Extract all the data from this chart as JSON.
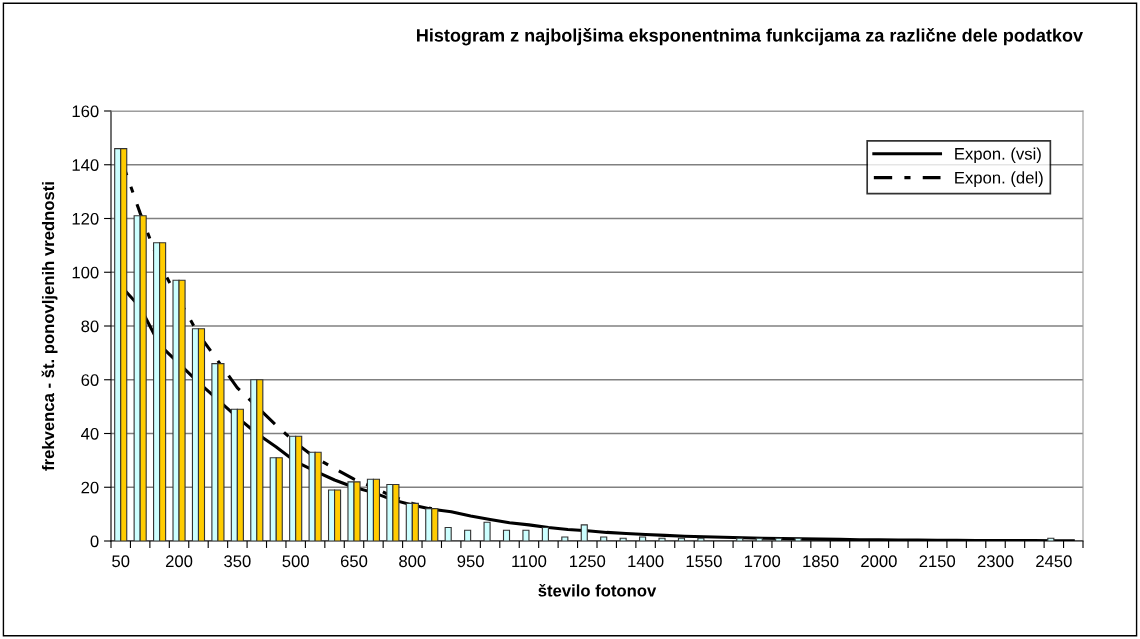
{
  "chart_data": {
    "type": "bar",
    "title": "Histogram z najboljšima eksponentnima funkcijama za različne dele podatkov",
    "xlabel": "število fotonov",
    "ylabel": "frekvenca - št. ponovljenih vrednosti",
    "categories": [
      "50",
      null,
      null,
      "200",
      null,
      null,
      "350",
      null,
      null,
      "500",
      null,
      null,
      "650",
      null,
      null,
      "800",
      null,
      null,
      "950",
      null,
      null,
      "1100",
      null,
      null,
      "1250",
      null,
      null,
      "1400",
      null,
      null,
      "1550",
      null,
      null,
      "1700",
      null,
      null,
      "1850",
      null,
      null,
      "2000",
      null,
      null,
      "2150",
      null,
      null,
      "2300",
      null,
      null,
      "2450",
      null
    ],
    "series": [
      {
        "color": "#ccffff",
        "values": [
          146,
          121,
          111,
          97,
          79,
          66,
          49,
          60,
          31,
          39,
          33,
          19,
          22,
          23,
          21,
          14,
          12,
          5,
          4,
          7,
          4,
          4,
          5,
          1.5,
          6,
          1.5,
          1,
          1.5,
          1,
          1,
          1,
          0,
          1,
          1,
          1,
          1,
          0,
          0,
          0,
          0,
          0,
          0,
          0,
          0,
          0,
          0,
          0,
          0,
          1,
          0
        ]
      },
      {
        "color": "#ffcc00",
        "values": [
          146,
          121,
          111,
          97,
          79,
          66,
          49,
          60,
          31,
          39,
          33,
          19,
          22,
          23,
          21,
          14,
          12,
          null,
          null,
          null,
          null,
          null,
          null,
          null,
          null,
          null,
          null,
          null,
          null,
          null,
          null,
          null,
          null,
          null,
          null,
          null,
          null,
          null,
          null,
          null,
          null,
          null,
          null,
          null,
          null,
          null,
          null,
          null,
          null,
          null
        ]
      },
      {
        "type": "line",
        "name": "Expon. (vsi)",
        "color": "#000000",
        "line_style": "solid",
        "values": [
          95,
          87,
          73,
          66,
          59,
          52.5,
          46,
          40,
          35,
          29.5,
          26,
          22.7,
          20,
          18,
          15.3,
          13.4,
          11.8,
          10.9,
          9.3,
          8,
          6.8,
          6,
          5,
          4.3,
          3.8,
          3.2,
          2.8,
          2.4,
          2.1,
          1.8,
          1.6,
          1.4,
          1.2,
          1.0,
          0.9,
          0.8,
          0.7,
          0.6,
          0.5,
          0.5,
          0.4,
          0.4,
          0.3,
          0.3,
          0.2,
          0.2,
          0.2,
          0.2,
          0.1,
          0.1
        ]
      },
      {
        "type": "line",
        "name": "Expon. (del)",
        "color": "#000000",
        "line_style": "dashed",
        "values": [
          142.5,
          122,
          103,
          89.7,
          77,
          67,
          57,
          50,
          43,
          36.5,
          31,
          27,
          23,
          20,
          16.5,
          14,
          12,
          null,
          null,
          null,
          null,
          null,
          null,
          null,
          null,
          null,
          null,
          null,
          null,
          null,
          null,
          null,
          null,
          null,
          null,
          null,
          null,
          null,
          null,
          null,
          null,
          null,
          null,
          null,
          null,
          null,
          null,
          null,
          null,
          null
        ]
      }
    ],
    "ylim": [
      0,
      160
    ],
    "yticks": [
      0,
      20,
      40,
      60,
      80,
      100,
      120,
      140,
      160
    ],
    "grid": "y",
    "legend": "top right"
  }
}
